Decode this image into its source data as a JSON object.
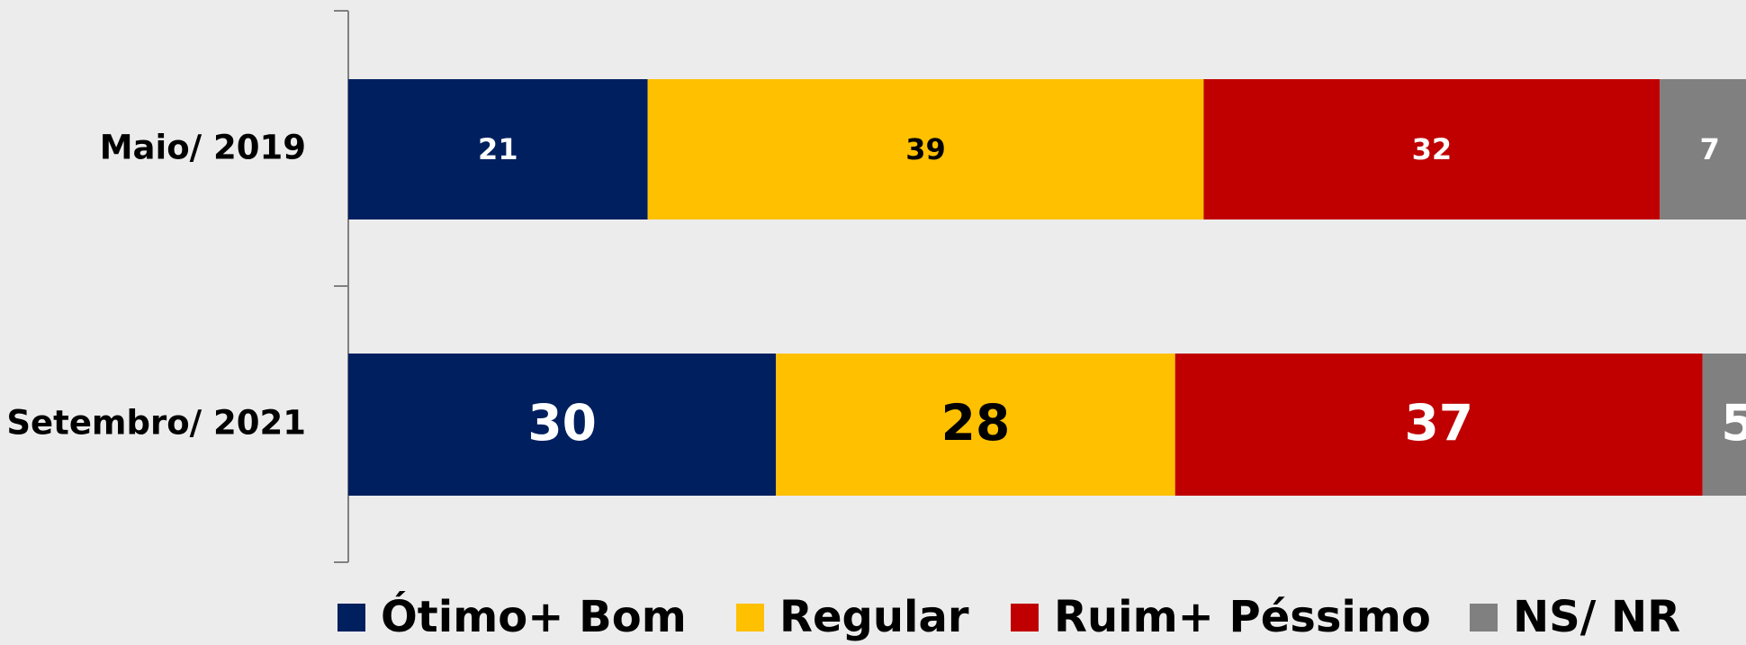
{
  "chart_data": {
    "type": "stacked-barh",
    "categories": [
      "Maio/ 2019",
      "Setembro/ 2021"
    ],
    "series": [
      {
        "name": "Ótimo+ Bom",
        "color": "#001f5f",
        "values": [
          21,
          30
        ]
      },
      {
        "name": "Regular",
        "color": "#ffc000",
        "values": [
          39,
          28
        ]
      },
      {
        "name": "Ruim+ Péssimo",
        "color": "#c00000",
        "values": [
          32,
          37
        ]
      },
      {
        "name": "NS/ NR",
        "color": "#808080",
        "values": [
          7,
          5
        ]
      }
    ],
    "xlim": [
      0,
      100
    ],
    "legend": "bottom"
  }
}
